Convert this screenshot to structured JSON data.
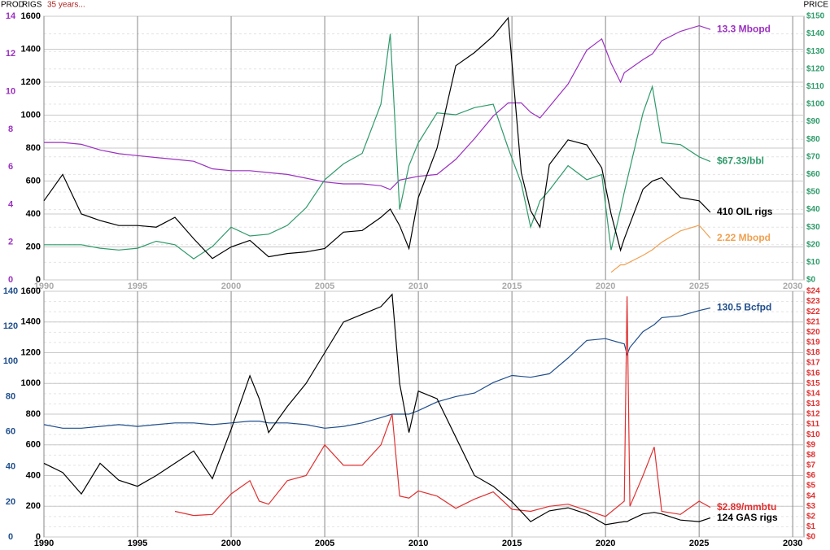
{
  "chart_data": [
    {
      "type": "line",
      "title": "35 years...",
      "y_label": "RIGS",
      "y3_label": "PROD",
      "y2_label": "PRICE",
      "x": [
        1990,
        1991,
        1992,
        1993,
        1994,
        1995,
        1996,
        1997,
        1998,
        1999,
        2000,
        2001,
        2002,
        2003,
        2004,
        2005,
        2006,
        2007,
        2008,
        2008.5,
        2009,
        2009.5,
        2010,
        2011,
        2012,
        2013,
        2014,
        2014.8,
        2015.5,
        2016,
        2016.5,
        2017,
        2018,
        2019,
        2019.8,
        2020.3,
        2020.8,
        2021,
        2022,
        2022.5,
        2023,
        2024,
        2025,
        2025.6
      ],
      "xlim": [
        1990,
        2030.6
      ],
      "xticks": [
        1990,
        1995,
        2000,
        2005,
        2010,
        2015,
        2020,
        2025,
        2030
      ],
      "ylim": [
        0,
        1600
      ],
      "yticks": [
        0,
        200,
        400,
        600,
        800,
        1000,
        1200,
        1400,
        1600
      ],
      "y3lim": [
        0,
        14
      ],
      "y3ticks": [
        0,
        2,
        4,
        6,
        8,
        10,
        12,
        14
      ],
      "y3_color": "#9b30c0",
      "y2lim": [
        0,
        150
      ],
      "y2_color": "#2e9a6a",
      "y2ticks": [
        {
          "value": 0,
          "label": "$0"
        },
        {
          "value": 10,
          "label": "$10"
        },
        {
          "value": 20,
          "label": "$20"
        },
        {
          "value": 30,
          "label": "$30"
        },
        {
          "value": 40,
          "label": "$40"
        },
        {
          "value": 50,
          "label": "$50"
        },
        {
          "value": 60,
          "label": "$60"
        },
        {
          "value": 70,
          "label": "$70"
        },
        {
          "value": 80,
          "label": "$80"
        },
        {
          "value": 90,
          "label": "$90"
        },
        {
          "value": 100,
          "label": "$100"
        },
        {
          "value": 110,
          "label": "$110"
        },
        {
          "value": 120,
          "label": "$120"
        },
        {
          "value": 130,
          "label": "$130"
        },
        {
          "value": 140,
          "label": "$140"
        },
        {
          "value": 150,
          "label": "$150"
        }
      ],
      "grid": true,
      "series": [
        {
          "name": "13.3 Mbopd",
          "color": "#9b30c0",
          "axis": "y3",
          "values": [
            7.3,
            7.3,
            7.2,
            6.9,
            6.7,
            6.6,
            6.5,
            6.4,
            6.3,
            5.9,
            5.8,
            5.8,
            5.7,
            5.6,
            5.4,
            5.2,
            5.1,
            5.1,
            5.0,
            4.8,
            5.3,
            5.4,
            5.5,
            5.6,
            6.4,
            7.5,
            8.7,
            9.4,
            9.4,
            8.9,
            8.6,
            9.2,
            10.4,
            12.2,
            12.8,
            11.5,
            10.5,
            11.0,
            11.7,
            12.0,
            12.7,
            13.2,
            13.5,
            13.3
          ]
        },
        {
          "name": "$67.33/bbl",
          "color": "#2e9a6a",
          "axis": "y2",
          "values": [
            20,
            20,
            20,
            18,
            17,
            18,
            22,
            20,
            12,
            19,
            30,
            25,
            26,
            31,
            41,
            57,
            66,
            72,
            100,
            140,
            40,
            65,
            78,
            95,
            94,
            98,
            100,
            75,
            55,
            30,
            45,
            51,
            65,
            57,
            60,
            17,
            40,
            50,
            95,
            110,
            78,
            77,
            70,
            67.33
          ]
        },
        {
          "name": "410 OIL rigs",
          "color": "#000000",
          "axis": "y",
          "values": [
            480,
            640,
            400,
            360,
            330,
            330,
            320,
            380,
            250,
            130,
            200,
            240,
            140,
            160,
            170,
            190,
            290,
            300,
            380,
            430,
            330,
            190,
            500,
            800,
            1300,
            1380,
            1480,
            1590,
            650,
            420,
            320,
            700,
            850,
            820,
            680,
            400,
            180,
            250,
            550,
            600,
            620,
            500,
            480,
            410
          ]
        },
        {
          "name": "2.22 Mbopd",
          "color": "#f0a050",
          "axis": "y3",
          "values": [
            null,
            null,
            null,
            null,
            null,
            null,
            null,
            null,
            null,
            null,
            null,
            null,
            null,
            null,
            null,
            null,
            null,
            null,
            null,
            null,
            null,
            null,
            null,
            null,
            null,
            null,
            null,
            null,
            null,
            null,
            null,
            null,
            null,
            null,
            null,
            0.4,
            0.8,
            0.8,
            1.3,
            1.6,
            2.0,
            2.6,
            2.9,
            2.22
          ]
        }
      ]
    },
    {
      "type": "line",
      "x": [
        1990,
        1991,
        1992,
        1993,
        1994,
        1995,
        1996,
        1997,
        1998,
        1999,
        2000,
        2001,
        2001.5,
        2002,
        2003,
        2004,
        2005,
        2006,
        2007,
        2008,
        2008.6,
        2009,
        2009.5,
        2010,
        2011,
        2012,
        2013,
        2014,
        2015,
        2016,
        2017,
        2018,
        2019,
        2020,
        2021,
        2021.15,
        2021.3,
        2022,
        2022.6,
        2023,
        2024,
        2025,
        2025.6
      ],
      "xlim": [
        1990,
        2030.6
      ],
      "xticks": [
        1990,
        1995,
        2000,
        2005,
        2010,
        2015,
        2020,
        2025,
        2030
      ],
      "ylim": [
        0,
        1600
      ],
      "yticks": [
        0,
        200,
        400,
        600,
        800,
        1000,
        1200,
        1400,
        1600
      ],
      "y3lim": [
        0,
        140
      ],
      "y3ticks": [
        0,
        20,
        40,
        60,
        80,
        100,
        120,
        140
      ],
      "y3_color": "#1f4e8c",
      "y2lim": [
        0,
        24
      ],
      "y2_color": "#e03030",
      "y2ticks": [
        {
          "value": 0,
          "label": "$0"
        },
        {
          "value": 1,
          "label": "$1"
        },
        {
          "value": 2,
          "label": "$2"
        },
        {
          "value": 3,
          "label": "$3"
        },
        {
          "value": 4,
          "label": "$4"
        },
        {
          "value": 5,
          "label": "$5"
        },
        {
          "value": 6,
          "label": "$6"
        },
        {
          "value": 7,
          "label": "$7"
        },
        {
          "value": 8,
          "label": "$8"
        },
        {
          "value": 9,
          "label": "$9"
        },
        {
          "value": 10,
          "label": "$10"
        },
        {
          "value": 11,
          "label": "$11"
        },
        {
          "value": 12,
          "label": "$12"
        },
        {
          "value": 13,
          "label": "$13"
        },
        {
          "value": 14,
          "label": "$14"
        },
        {
          "value": 15,
          "label": "$15"
        },
        {
          "value": 16,
          "label": "$16"
        },
        {
          "value": 17,
          "label": "$17"
        },
        {
          "value": 18,
          "label": "$18"
        },
        {
          "value": 19,
          "label": "$19"
        },
        {
          "value": 20,
          "label": "$20"
        },
        {
          "value": 21,
          "label": "$21"
        },
        {
          "value": 22,
          "label": "$22"
        },
        {
          "value": 23,
          "label": "$23"
        },
        {
          "value": 24,
          "label": "$24"
        }
      ],
      "grid": true,
      "series": [
        {
          "name": "130.5 Bcfpd",
          "color": "#1f4e8c",
          "axis": "y3",
          "values": [
            64,
            62,
            62,
            63,
            64,
            63,
            64,
            65,
            65,
            64,
            65,
            66,
            66,
            65,
            65,
            64,
            62,
            63,
            65,
            68,
            70,
            70,
            70,
            72,
            77,
            80,
            82,
            88,
            92,
            91,
            93,
            102,
            112,
            113,
            110,
            104,
            108,
            117,
            121,
            125,
            126,
            129,
            130.5
          ]
        },
        {
          "name": "$2.89/mmbtu",
          "color": "#e03030",
          "axis": "y2",
          "values": [
            null,
            null,
            null,
            null,
            null,
            null,
            null,
            2.5,
            2.1,
            2.2,
            4.2,
            5.5,
            3.5,
            3.2,
            5.5,
            6.0,
            9.0,
            7.0,
            7.0,
            9.0,
            12.0,
            4.0,
            3.8,
            4.5,
            4.0,
            2.8,
            3.7,
            4.4,
            2.7,
            2.5,
            3.0,
            3.2,
            2.6,
            2.0,
            3.5,
            23.5,
            3.0,
            6.0,
            8.8,
            2.5,
            2.2,
            3.5,
            2.89
          ]
        },
        {
          "name": "124 GAS rigs",
          "color": "#000000",
          "axis": "y",
          "values": [
            480,
            420,
            280,
            480,
            370,
            330,
            400,
            480,
            560,
            380,
            700,
            1050,
            900,
            680,
            850,
            1000,
            1200,
            1400,
            1450,
            1500,
            1580,
            1000,
            680,
            950,
            900,
            650,
            400,
            330,
            230,
            100,
            170,
            190,
            150,
            80,
            100,
            100,
            110,
            150,
            160,
            150,
            110,
            100,
            124
          ]
        }
      ]
    }
  ]
}
